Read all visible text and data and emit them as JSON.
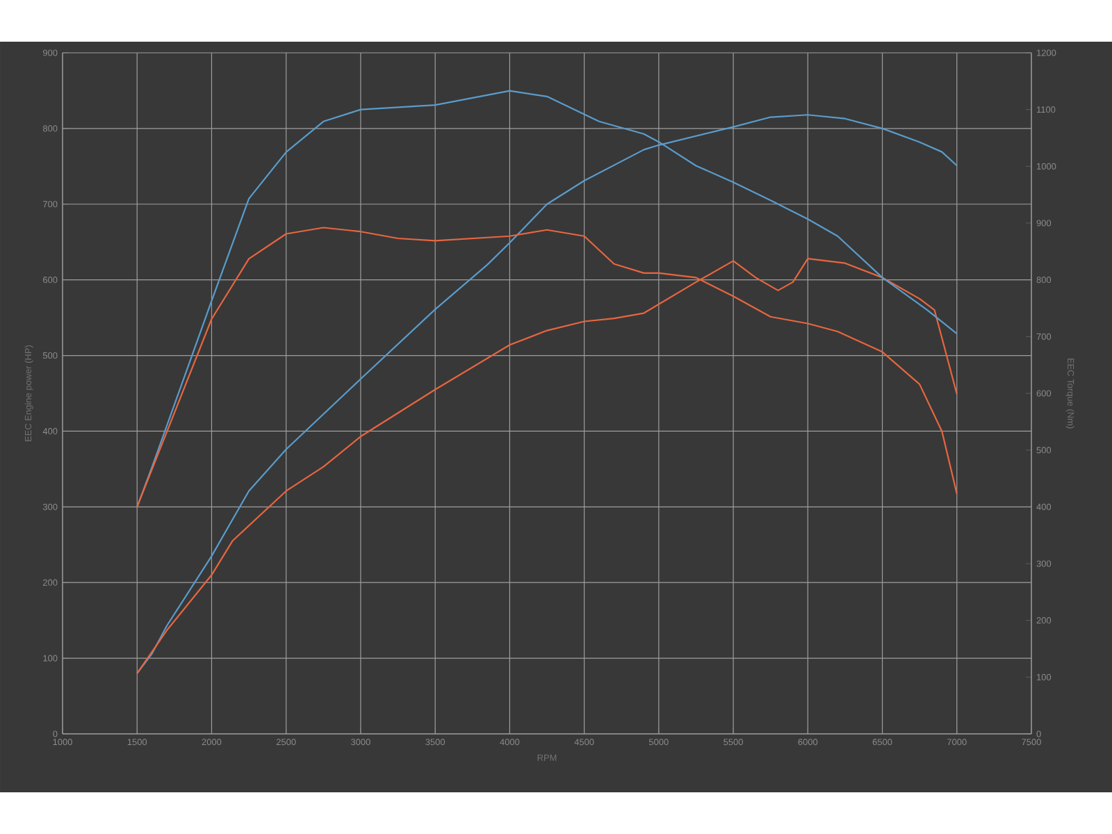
{
  "chart_data": {
    "type": "line",
    "xlabel": "RPM",
    "ylabel": "EEC Engine power (HP)",
    "y2label": "EEC Torque (Nm)",
    "xlim": [
      1000,
      7500
    ],
    "xticks": [
      1000,
      1500,
      2000,
      2500,
      3000,
      3500,
      4000,
      4500,
      5000,
      5500,
      6000,
      6500,
      7000,
      7500
    ],
    "ylim": [
      0,
      900
    ],
    "yticks": [
      0,
      100,
      200,
      300,
      400,
      500,
      600,
      700,
      800,
      900
    ],
    "y2lim": [
      0,
      1200
    ],
    "y2ticks": [
      0,
      100,
      200,
      300,
      400,
      500,
      600,
      700,
      800,
      900,
      1000,
      1100,
      1200
    ],
    "grid": true,
    "line_style": "solid",
    "series": [
      {
        "color": "#5a9ccc",
        "axis": "y",
        "x": [
          1500,
          1600,
          1700,
          2000,
          2250,
          2500,
          3000,
          3500,
          3850,
          4000,
          4250,
          4500,
          4900,
          5000,
          5500,
          5750,
          6000,
          6250,
          6500,
          6750,
          6900,
          7000
        ],
        "values": [
          80,
          106,
          143,
          235,
          321,
          376,
          469,
          561,
          620,
          649,
          700,
          731,
          772,
          778,
          802,
          815,
          818,
          813,
          800,
          782,
          769,
          751
        ]
      },
      {
        "color": "#e8663f",
        "axis": "y",
        "x": [
          1500,
          1700,
          2000,
          2140,
          2500,
          2750,
          3000,
          3500,
          4000,
          4250,
          4500,
          4700,
          4900,
          5250,
          5500,
          5650,
          5800,
          5900,
          6000,
          6250,
          6500,
          6750,
          6850,
          7000
        ],
        "values": [
          80,
          137,
          210,
          255,
          321,
          353,
          393,
          455,
          514,
          533,
          545,
          549,
          556,
          597,
          625,
          603,
          586,
          597,
          628,
          622,
          603,
          575,
          560,
          449
        ]
      },
      {
        "color": "#5a9ccc",
        "axis": "y2",
        "x": [
          1500,
          1600,
          2000,
          2250,
          2500,
          2750,
          3000,
          3500,
          4000,
          4250,
          4600,
          4900,
          5000,
          5250,
          5500,
          5750,
          6000,
          6200,
          6500,
          6800,
          7000
        ],
        "values": [
          400,
          470,
          763,
          943,
          1025,
          1079,
          1100,
          1108,
          1133,
          1123,
          1079,
          1057,
          1043,
          1001,
          972,
          940,
          907,
          877,
          804,
          747,
          705
        ]
      },
      {
        "color": "#e8663f",
        "axis": "y2",
        "x": [
          1500,
          2000,
          2250,
          2500,
          2750,
          3000,
          3250,
          3500,
          4000,
          4250,
          4500,
          4700,
          4900,
          5000,
          5250,
          5500,
          5750,
          6000,
          6200,
          6500,
          6750,
          6900,
          7000
        ],
        "values": [
          400,
          731,
          837,
          881,
          892,
          885,
          873,
          869,
          877,
          888,
          877,
          828,
          812,
          812,
          804,
          771,
          735,
          723,
          709,
          673,
          616,
          533,
          423
        ]
      }
    ]
  }
}
